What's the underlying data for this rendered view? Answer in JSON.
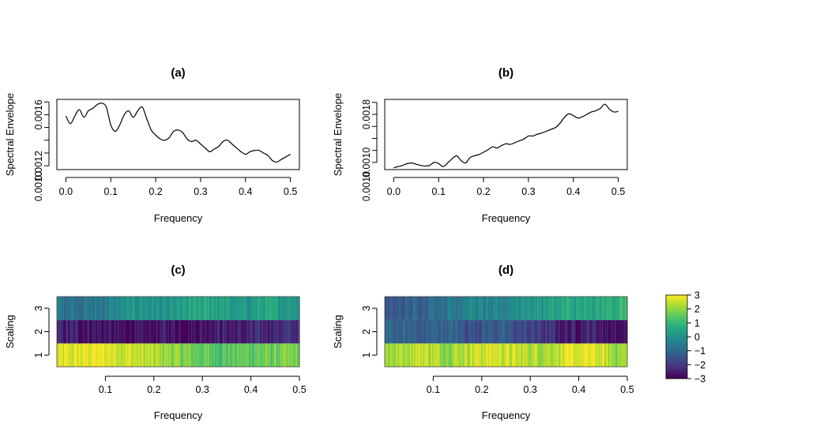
{
  "chart_data": [
    {
      "id": "a",
      "type": "line",
      "title": "(a)",
      "xlabel": "Frequency",
      "ylabel": "Spectral Envelope",
      "xlim": [
        -0.02,
        0.52
      ],
      "ylim": [
        0.00117,
        0.00172
      ],
      "xticks": [
        0,
        0.1,
        0.2,
        0.3,
        0.4,
        0.5
      ],
      "xtick_labels": [
        "0.0",
        "0.1",
        "0.2",
        "0.3",
        "0.4",
        "0.5"
      ],
      "yticks": [
        0.0012,
        0.0013,
        0.0014,
        0.0015,
        0.0016,
        0.0017
      ],
      "ytick_labels": [
        "0.0012",
        "",
        "",
        "",
        "0.0016",
        ""
      ],
      "y_floor_label": "0.0010",
      "x": [
        0.0,
        0.01,
        0.02,
        0.03,
        0.04,
        0.05,
        0.06,
        0.07,
        0.08,
        0.09,
        0.1,
        0.11,
        0.12,
        0.13,
        0.14,
        0.15,
        0.16,
        0.17,
        0.18,
        0.19,
        0.2,
        0.21,
        0.22,
        0.23,
        0.24,
        0.25,
        0.26,
        0.27,
        0.28,
        0.29,
        0.3,
        0.31,
        0.32,
        0.33,
        0.34,
        0.35,
        0.36,
        0.37,
        0.38,
        0.39,
        0.4,
        0.41,
        0.42,
        0.43,
        0.44,
        0.45,
        0.46,
        0.47,
        0.48,
        0.49,
        0.5
      ],
      "y": [
        0.00159,
        0.00153,
        0.00159,
        0.00164,
        0.00158,
        0.00163,
        0.00165,
        0.00168,
        0.00169,
        0.00166,
        0.00152,
        0.00147,
        0.00152,
        0.0016,
        0.00163,
        0.00158,
        0.00163,
        0.00166,
        0.00157,
        0.00148,
        0.00144,
        0.00141,
        0.0014,
        0.00142,
        0.00147,
        0.00148,
        0.00146,
        0.00141,
        0.00139,
        0.0014,
        0.00137,
        0.00134,
        0.00131,
        0.00133,
        0.00135,
        0.00139,
        0.0014,
        0.00137,
        0.00134,
        0.00131,
        0.00129,
        0.00131,
        0.00132,
        0.00132,
        0.0013,
        0.00128,
        0.00124,
        0.00123,
        0.00125,
        0.00127,
        0.00129
      ]
    },
    {
      "id": "b",
      "type": "line",
      "title": "(b)",
      "xlabel": "Frequency",
      "ylabel": "Spectral Envelope",
      "xlim": [
        -0.02,
        0.52
      ],
      "ylim": [
        0.00088,
        0.00205
      ],
      "xticks": [
        0,
        0.1,
        0.2,
        0.3,
        0.4,
        0.5
      ],
      "xtick_labels": [
        "0.0",
        "0.1",
        "0.2",
        "0.3",
        "0.4",
        "0.5"
      ],
      "yticks": [
        0.001,
        0.0012,
        0.0014,
        0.0016,
        0.0018,
        0.002
      ],
      "ytick_labels": [
        "0.0010",
        "",
        "",
        "",
        "0.0018",
        ""
      ],
      "y_floor_label": "0.0010",
      "x": [
        0.0,
        0.01,
        0.02,
        0.03,
        0.04,
        0.05,
        0.06,
        0.07,
        0.08,
        0.09,
        0.1,
        0.11,
        0.12,
        0.13,
        0.14,
        0.15,
        0.16,
        0.17,
        0.18,
        0.19,
        0.2,
        0.21,
        0.22,
        0.23,
        0.24,
        0.25,
        0.26,
        0.27,
        0.28,
        0.29,
        0.3,
        0.31,
        0.32,
        0.33,
        0.34,
        0.35,
        0.36,
        0.37,
        0.38,
        0.39,
        0.4,
        0.41,
        0.42,
        0.43,
        0.44,
        0.45,
        0.46,
        0.47,
        0.48,
        0.49,
        0.5
      ],
      "y": [
        0.00091,
        0.00093,
        0.00095,
        0.00098,
        0.00099,
        0.00097,
        0.00095,
        0.00094,
        0.00095,
        0.001,
        0.00098,
        0.00093,
        0.00099,
        0.00106,
        0.00111,
        0.00103,
        0.00099,
        0.00108,
        0.00111,
        0.00113,
        0.00117,
        0.00121,
        0.00126,
        0.00124,
        0.00128,
        0.00131,
        0.0013,
        0.00133,
        0.00136,
        0.00139,
        0.00144,
        0.00144,
        0.00147,
        0.00149,
        0.00152,
        0.00155,
        0.00158,
        0.00165,
        0.00175,
        0.00181,
        0.00178,
        0.00174,
        0.00176,
        0.0018,
        0.00184,
        0.00186,
        0.0019,
        0.00197,
        0.00189,
        0.00184,
        0.00185
      ]
    },
    {
      "id": "c",
      "type": "heatmap",
      "title": "(c)",
      "xlabel": "Frequency",
      "ylabel": "Scaling",
      "xlim": [
        0,
        0.5
      ],
      "xticks": [
        0.1,
        0.2,
        0.3,
        0.4,
        0.5
      ],
      "xtick_labels": [
        "0.1",
        "0.2",
        "0.3",
        "0.4",
        "0.5"
      ],
      "rows": [
        1,
        2,
        3
      ],
      "row_labels": [
        "1",
        "2",
        "3"
      ],
      "x": [
        0.025,
        0.075,
        0.125,
        0.175,
        0.225,
        0.275,
        0.325,
        0.375,
        0.425,
        0.475
      ],
      "values": [
        [
          2.6,
          2.9,
          2.7,
          2.4,
          2.1,
          1.7,
          1.4,
          1.5,
          1.6,
          1.7
        ],
        [
          -2.5,
          -2.6,
          -2.8,
          -2.9,
          -2.6,
          -2.8,
          -2.4,
          -2.6,
          -2.3,
          -2.2
        ],
        [
          -0.6,
          -0.7,
          -0.2,
          0.2,
          -0.1,
          0.4,
          0.6,
          0.1,
          0.5,
          0.3
        ]
      ]
    },
    {
      "id": "d",
      "type": "heatmap",
      "title": "(d)",
      "xlabel": "Frequency",
      "ylabel": "Scaling",
      "xlim": [
        0,
        0.5
      ],
      "xticks": [
        0.1,
        0.2,
        0.3,
        0.4,
        0.5
      ],
      "xtick_labels": [
        "0.1",
        "0.2",
        "0.3",
        "0.4",
        "0.5"
      ],
      "rows": [
        1,
        2,
        3
      ],
      "row_labels": [
        "1",
        "2",
        "3"
      ],
      "x": [
        0.025,
        0.075,
        0.125,
        0.175,
        0.225,
        0.275,
        0.325,
        0.375,
        0.425,
        0.475
      ],
      "values": [
        [
          2.2,
          2.6,
          2.1,
          2.5,
          2.7,
          2.4,
          2.3,
          2.6,
          2.8,
          2.1
        ],
        [
          -1.0,
          -1.3,
          -1.0,
          -1.5,
          -1.2,
          -1.6,
          -2.0,
          -2.6,
          -2.3,
          -2.8
        ],
        [
          -1.4,
          -1.0,
          -0.6,
          -0.2,
          -0.5,
          0.1,
          0.3,
          0.6,
          0.4,
          0.9
        ]
      ]
    }
  ],
  "colorbar": {
    "range": [
      -3,
      3
    ],
    "ticks": [
      3,
      2,
      1,
      0,
      -1,
      -2,
      -3
    ],
    "tick_labels": [
      "3",
      "2",
      "1",
      "0",
      "−1",
      "−2",
      "−3"
    ],
    "palette": [
      "#440154",
      "#472D7B",
      "#3B528B",
      "#2C728E",
      "#21908C",
      "#27AD81",
      "#5DC863",
      "#AADC32",
      "#FDE725"
    ]
  }
}
